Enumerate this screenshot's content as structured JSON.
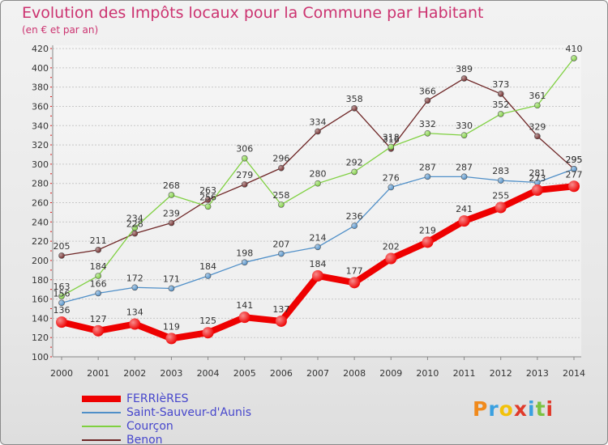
{
  "header": {
    "title": "Evolution des Impôts locaux pour la Commune par Habitant",
    "subtitle": "(en € et par an)"
  },
  "logo": {
    "text": "Proxiti"
  },
  "chart_data": {
    "type": "line",
    "title": "Evolution des Impôts locaux pour la Commune par Habitant",
    "subtitle": "(en € et par an)",
    "xlabel": "",
    "ylabel": "",
    "x": [
      "2000",
      "2001",
      "2002",
      "2003",
      "2004",
      "2005",
      "2006",
      "2007",
      "2008",
      "2009",
      "2010",
      "2011",
      "2012",
      "2013",
      "2014"
    ],
    "ylim": [
      100,
      420
    ],
    "yticks": [
      100,
      120,
      140,
      160,
      180,
      200,
      220,
      240,
      260,
      280,
      300,
      320,
      340,
      360,
      380,
      400,
      420
    ],
    "grid": "horizontal",
    "legend_position": "bottom-left",
    "series": [
      {
        "name": "FERRIèRES",
        "color": "#ee0000",
        "values": [
          136,
          127,
          134,
          119,
          125,
          141,
          137,
          184,
          177,
          202,
          219,
          241,
          255,
          273,
          277
        ]
      },
      {
        "name": "Saint-Sauveur-d'Aunis",
        "color": "#4f8fc8",
        "values": [
          156,
          166,
          172,
          171,
          184,
          198,
          207,
          214,
          236,
          276,
          287,
          287,
          283,
          281,
          295
        ]
      },
      {
        "name": "Courçon",
        "color": "#7fd040",
        "values": [
          163,
          184,
          234,
          268,
          256,
          306,
          258,
          280,
          292,
          318,
          332,
          330,
          352,
          361,
          410
        ]
      },
      {
        "name": "Benon",
        "color": "#6e2626",
        "values": [
          205,
          211,
          228,
          239,
          263,
          279,
          296,
          334,
          358,
          316,
          366,
          389,
          373,
          329,
          295
        ]
      }
    ]
  }
}
